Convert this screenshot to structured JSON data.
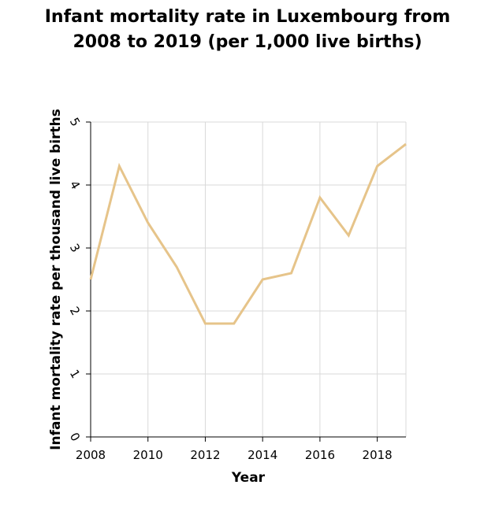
{
  "chart_data": {
    "type": "line",
    "title_lines": [
      "Infant mortality rate in Luxembourg from",
      "2008 to 2019 (per 1,000 live births)"
    ],
    "xlabel": "Year",
    "ylabel": "Infant mortality rate per thousand live births",
    "x": [
      2008,
      2009,
      2010,
      2011,
      2012,
      2013,
      2014,
      2015,
      2016,
      2017,
      2018,
      2019
    ],
    "series": [
      {
        "values": [
          2.5,
          4.3,
          3.4,
          2.7,
          1.8,
          1.8,
          2.5,
          2.6,
          3.8,
          3.2,
          4.3,
          4.65
        ]
      }
    ],
    "xlim": [
      2008,
      2019
    ],
    "ylim": [
      0,
      5
    ],
    "x_ticks": [
      2008,
      2010,
      2012,
      2014,
      2016,
      2018
    ],
    "x_tick_labels": [
      "2008",
      "2010",
      "2012",
      "2014",
      "2016",
      "2018"
    ],
    "y_ticks": [
      0,
      1,
      2,
      3,
      4,
      5
    ],
    "y_tick_labels": [
      "0",
      "1",
      "2",
      "3",
      "4",
      "5"
    ],
    "grid": true,
    "line_color": "#e6c48a",
    "grid_color": "#d9d9d9"
  }
}
